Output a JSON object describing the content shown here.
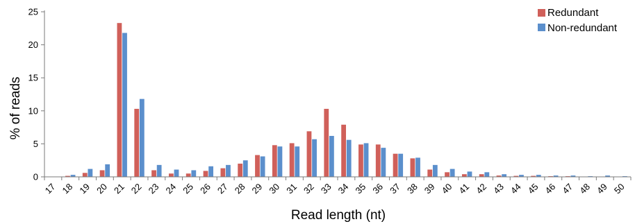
{
  "chart_data": {
    "type": "bar",
    "xlabel": "Read length (nt)",
    "ylabel": "% of reads",
    "ylim": [
      0,
      25
    ],
    "yticks": [
      0,
      5,
      10,
      15,
      20,
      25
    ],
    "grid": false,
    "legend_position": "top-right",
    "categories": [
      "17",
      "18",
      "19",
      "20",
      "21",
      "22",
      "23",
      "24",
      "25",
      "26",
      "27",
      "28",
      "29",
      "30",
      "31",
      "32",
      "33",
      "34",
      "35",
      "36",
      "37",
      "38",
      "39",
      "40",
      "41",
      "42",
      "43",
      "44",
      "45",
      "46",
      "47",
      "48",
      "49",
      "50"
    ],
    "series": [
      {
        "name": "Redundant",
        "color": "#d0605a",
        "values": [
          0.05,
          0.15,
          0.6,
          1.0,
          23.3,
          10.3,
          1.0,
          0.5,
          0.5,
          0.9,
          1.3,
          2.0,
          3.3,
          4.8,
          5.1,
          6.9,
          10.3,
          7.9,
          4.9,
          4.9,
          3.5,
          2.8,
          1.1,
          0.7,
          0.4,
          0.4,
          0.2,
          0.15,
          0.15,
          0.1,
          0.1,
          0.05,
          0.05,
          0.05
        ]
      },
      {
        "name": "Non-redundant",
        "color": "#5b8fcc",
        "values": [
          0.05,
          0.3,
          1.2,
          1.9,
          21.8,
          11.8,
          1.8,
          1.1,
          1.0,
          1.6,
          1.8,
          2.5,
          3.1,
          4.6,
          4.6,
          5.7,
          6.2,
          5.6,
          5.1,
          4.4,
          3.5,
          2.9,
          1.8,
          1.2,
          0.8,
          0.7,
          0.4,
          0.3,
          0.3,
          0.2,
          0.2,
          0.1,
          0.2,
          0.1
        ]
      }
    ]
  }
}
